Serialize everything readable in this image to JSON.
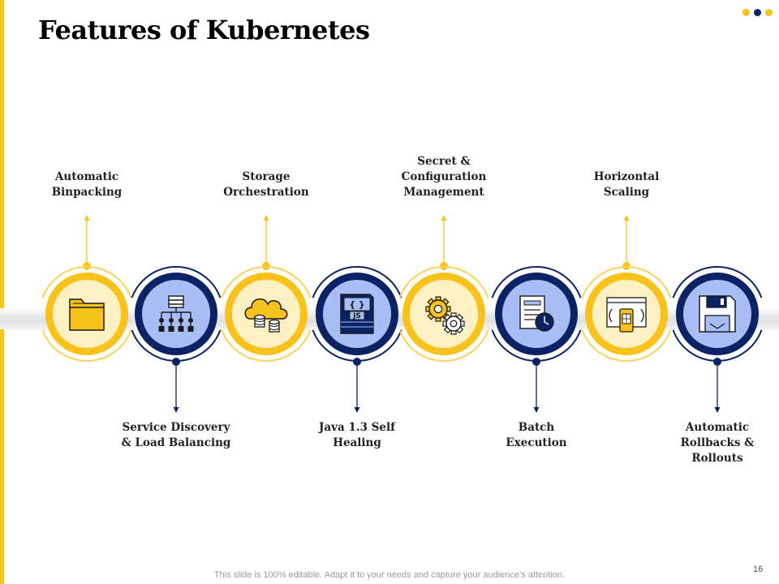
{
  "slide": {
    "title": "Features of Kubernetes",
    "footer": "This slide is 100% editable. Adapt it to your needs and capture your audience’s attention.",
    "page_number": "16"
  },
  "colors": {
    "yellow": "#F7C21B",
    "pale_yellow": "#FDF0C2",
    "navy": "#0B2264",
    "light_blue": "#A9BEF7"
  },
  "features": [
    {
      "label": "Automatic\nBinpacking",
      "icon": "folder-icon",
      "style": "yellow",
      "label_position": "top"
    },
    {
      "label": "Service Discovery\n& Load Balancing",
      "icon": "network-hierarchy-icon",
      "style": "navy",
      "label_position": "bottom"
    },
    {
      "label": "Storage\nOrchestration",
      "icon": "cloud-storage-icon",
      "style": "yellow",
      "label_position": "top"
    },
    {
      "label": "Java 1.3 Self\nHealing",
      "icon": "javascript-file-icon",
      "style": "navy",
      "label_position": "bottom"
    },
    {
      "label": "Secret &\nConfiguration\nManagement",
      "icon": "gears-icon",
      "style": "yellow",
      "label_position": "top"
    },
    {
      "label": "Batch\nExecution",
      "icon": "document-clock-icon",
      "style": "navy",
      "label_position": "bottom"
    },
    {
      "label": "Horizontal\nScaling",
      "icon": "responsive-scaling-icon",
      "style": "yellow",
      "label_position": "top"
    },
    {
      "label": "Automatic\nRollbacks &\nRollouts",
      "icon": "floppy-disk-icon",
      "style": "navy",
      "label_position": "bottom"
    }
  ]
}
